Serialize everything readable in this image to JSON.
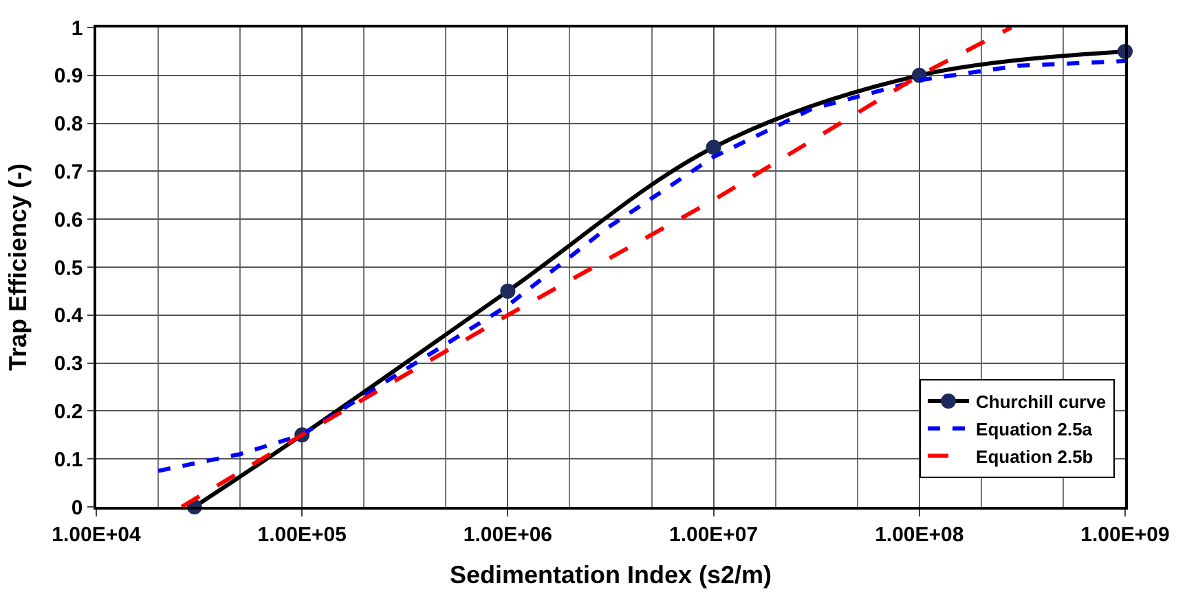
{
  "chart_data": {
    "type": "line",
    "xlabel": "Sedimentation Index (s2/m)",
    "ylabel": "Trap Efficiency (-)",
    "log": "x",
    "xlim": [
      10000,
      1000000000
    ],
    "xticks": [
      {
        "value": 10000,
        "label": "1.00E+04"
      },
      {
        "value": 100000,
        "label": "1.00E+05"
      },
      {
        "value": 1000000,
        "label": "1.00E+06"
      },
      {
        "value": 10000000,
        "label": "1.00E+07"
      },
      {
        "value": 100000000,
        "label": "1.00E+08"
      },
      {
        "value": 1000000000,
        "label": "1.00E+09"
      }
    ],
    "ylim": [
      0,
      1
    ],
    "yticks": [
      0,
      0.1,
      0.2,
      0.3,
      0.4,
      0.5,
      0.6,
      0.7,
      0.8,
      0.9,
      1
    ],
    "grid": true,
    "legend": "bottom right",
    "series": [
      {
        "name": "Churchill curve",
        "color": "#000000",
        "marker": "circle",
        "line_style": "solid",
        "x": [
          30000,
          100000,
          1000000,
          10000000,
          100000000,
          1000000000
        ],
        "values": [
          0,
          0.15,
          0.45,
          0.75,
          0.9,
          0.95
        ]
      },
      {
        "name": "Equation 2.5a",
        "color": "#0000ff",
        "marker": "none",
        "line_style": "dotted",
        "x": [
          20000,
          50000,
          100000,
          300000,
          1000000,
          3000000,
          10000000,
          30000000,
          100000000,
          300000000,
          1000000000
        ],
        "values": [
          0.075,
          0.11,
          0.15,
          0.28,
          0.42,
          0.58,
          0.73,
          0.83,
          0.89,
          0.92,
          0.93
        ]
      },
      {
        "name": "Equation 2.5b",
        "color": "#ff0000",
        "marker": "none",
        "line_style": "dashed",
        "x": [
          26000,
          100000,
          1000000,
          10000000,
          100000000,
          280000000
        ],
        "values": [
          0,
          0.15,
          0.4,
          0.64,
          0.9,
          1
        ]
      }
    ]
  }
}
